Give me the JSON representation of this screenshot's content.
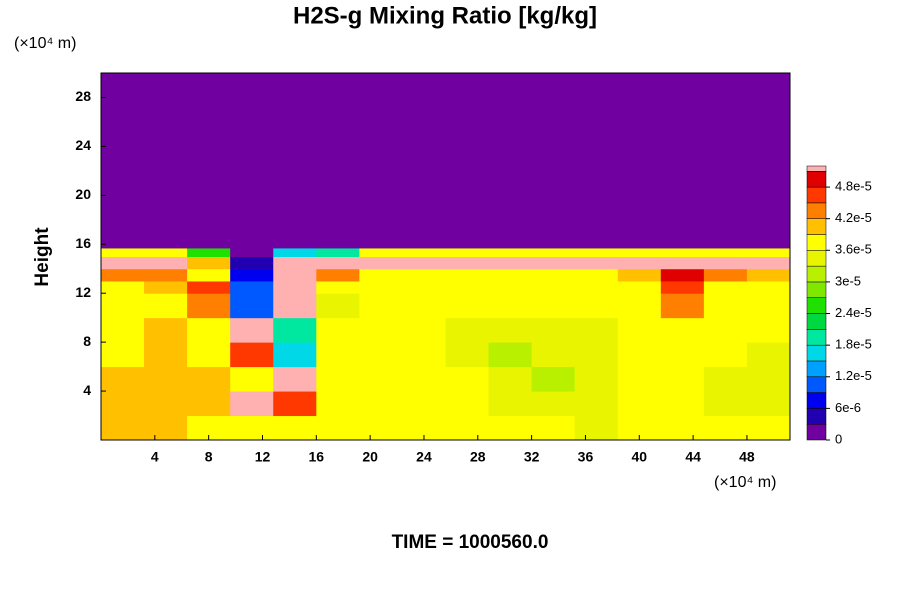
{
  "chart_data": {
    "type": "heatmap",
    "title": "H2S-g Mixing Ratio [kg/kg]",
    "ylabel": "Height",
    "x_unit": "(×10⁴ m)",
    "y_unit": "(×10⁴ m)",
    "footer": "TIME = 1000560.0",
    "xlim": [
      0,
      51.2
    ],
    "ylim": [
      0,
      30
    ],
    "xticks": [
      4,
      8,
      12,
      16,
      20,
      24,
      28,
      32,
      36,
      40,
      44,
      48
    ],
    "yticks": [
      4,
      8,
      12,
      16,
      20,
      24,
      28
    ],
    "x_edges": [
      0,
      3.2,
      6.4,
      9.6,
      12.8,
      16,
      19.2,
      22.4,
      25.6,
      28.8,
      32,
      35.2,
      38.4,
      41.6,
      44.8,
      48,
      51.2
    ],
    "y_edges": [
      0,
      2,
      4,
      6,
      8,
      10,
      12,
      13,
      14,
      15,
      15.7,
      30
    ],
    "z": [
      [
        3.9e-05,
        3.9e-05,
        3.8e-05,
        3.7e-05,
        3.7e-05,
        3.7e-05,
        3.6e-05,
        3.6e-05,
        3.6e-05,
        3.6e-05,
        3.6e-05,
        3.5e-05,
        3.6e-05,
        3.6e-05,
        3.6e-05,
        3.6e-05
      ],
      [
        4e-05,
        4e-05,
        3.9e-05,
        5.2e-05,
        4.6e-05,
        3.7e-05,
        3.6e-05,
        3.6e-05,
        3.6e-05,
        3.5e-05,
        3.4e-05,
        3.5e-05,
        3.6e-05,
        3.6e-05,
        3.4e-05,
        3.5e-05
      ],
      [
        4e-05,
        4e-05,
        3.9e-05,
        3.8e-05,
        5.2e-05,
        3.7e-05,
        3.6e-05,
        3.6e-05,
        3.6e-05,
        3.3e-05,
        3.2e-05,
        3.4e-05,
        3.6e-05,
        3.6e-05,
        3.5e-05,
        3.3e-05
      ],
      [
        3.8e-05,
        4e-05,
        3.8e-05,
        4.5e-05,
        1.5e-05,
        3.6e-05,
        3.6e-05,
        3.6e-05,
        3.5e-05,
        3.2e-05,
        3.3e-05,
        3.4e-05,
        3.6e-05,
        3.6e-05,
        3.6e-05,
        3.5e-05
      ],
      [
        3.8e-05,
        3.9e-05,
        3.7e-05,
        5.2e-05,
        2e-05,
        3.6e-05,
        3.6e-05,
        3.6e-05,
        3.5e-05,
        3.4e-05,
        3.4e-05,
        3.5e-05,
        3.6e-05,
        3.6e-05,
        3.6e-05,
        3.6e-05
      ],
      [
        3.6e-05,
        3.6e-05,
        4.3e-05,
        1e-05,
        5.2e-05,
        3.4e-05,
        3.6e-05,
        3.6e-05,
        3.6e-05,
        3.6e-05,
        3.6e-05,
        3.6e-05,
        3.6e-05,
        4.4e-05,
        3.6e-05,
        3.6e-05
      ],
      [
        3.6e-05,
        4e-05,
        4.6e-05,
        1e-05,
        5.2e-05,
        3.6e-05,
        3.6e-05,
        3.7e-05,
        3.6e-05,
        3.6e-05,
        3.6e-05,
        3.6e-05,
        3.7e-05,
        4.6e-05,
        3.6e-05,
        3.6e-05
      ],
      [
        4.2e-05,
        4.4e-05,
        3.8e-05,
        6e-06,
        5.2e-05,
        4.2e-05,
        3.8e-05,
        3.7e-05,
        3.8e-05,
        3.8e-05,
        3.7e-05,
        3.7e-05,
        4e-05,
        4.8e-05,
        4.2e-05,
        4e-05
      ],
      [
        5.2e-05,
        5.2e-05,
        4e-05,
        3e-06,
        5.2e-05,
        5.2e-05,
        5.2e-05,
        5.2e-05,
        5.2e-05,
        5.2e-05,
        5.2e-05,
        5.2e-05,
        5.2e-05,
        5.2e-05,
        5.2e-05,
        5.2e-05
      ],
      [
        3.7e-05,
        3.7e-05,
        2.4e-05,
        0,
        1.5e-05,
        2e-05,
        3.7e-05,
        3.7e-05,
        3.7e-05,
        3.7e-05,
        3.7e-05,
        3.7e-05,
        3.7e-05,
        3.7e-05,
        3.7e-05,
        3.7e-05
      ],
      [
        0,
        0,
        0,
        0,
        0,
        0,
        0,
        0,
        0,
        0,
        0,
        0,
        0,
        0,
        0,
        0
      ]
    ],
    "colorbar": {
      "clim": [
        0,
        5.2e-05
      ],
      "levels": [
        0,
        3e-06,
        6e-06,
        9e-06,
        1.2e-05,
        1.5e-05,
        1.8e-05,
        2.1e-05,
        2.4e-05,
        2.7e-05,
        3e-05,
        3.3e-05,
        3.6e-05,
        3.9e-05,
        4.2e-05,
        4.5e-05,
        4.8e-05,
        5.1e-05
      ],
      "colors": [
        "#7000a0",
        "#2000b0",
        "#0000f0",
        "#0058ff",
        "#00a0ff",
        "#00d8e8",
        "#00e8a0",
        "#00d840",
        "#20e000",
        "#80e800",
        "#b8f000",
        "#e8f400",
        "#ffff00",
        "#ffc000",
        "#ff8000",
        "#ff3800",
        "#e00000",
        "#ffb0b0"
      ],
      "ticks": [
        0,
        {
          "value": 6e-06,
          "label": "6e-6"
        },
        {
          "value": 1.2e-05,
          "label": "1.2e-5"
        },
        {
          "value": 1.8e-05,
          "label": "1.8e-5"
        },
        {
          "value": 2.4e-05,
          "label": "2.4e-5"
        },
        {
          "value": 3e-05,
          "label": "3e-5"
        },
        {
          "value": 3.6e-05,
          "label": "3.6e-5"
        },
        {
          "value": 4.2e-05,
          "label": "4.2e-5"
        },
        {
          "value": 4.8e-05,
          "label": "4.8e-5"
        }
      ]
    }
  }
}
